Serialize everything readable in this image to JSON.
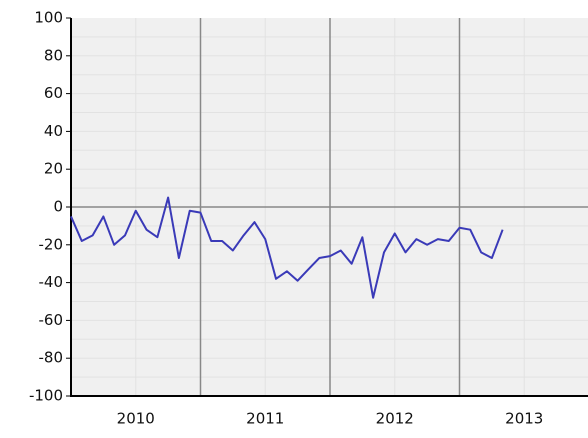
{
  "chart_data": {
    "type": "line",
    "x": [
      2010,
      2010.083,
      2010.167,
      2010.25,
      2010.333,
      2010.417,
      2010.5,
      2010.583,
      2010.667,
      2010.75,
      2010.833,
      2010.917,
      2011,
      2011.083,
      2011.167,
      2011.25,
      2011.333,
      2011.417,
      2011.5,
      2011.583,
      2011.667,
      2011.75,
      2011.833,
      2011.917,
      2012,
      2012.083,
      2012.167,
      2012.25,
      2012.333,
      2012.417,
      2012.5,
      2012.583,
      2012.667,
      2012.75,
      2012.833,
      2012.917,
      2013,
      2013.083,
      2013.167,
      2013.25,
      2013.333
    ],
    "series": [
      {
        "color": "#3a3ab8",
        "values": [
          -5,
          -18,
          -15,
          -5,
          -20,
          -15,
          -2,
          -12,
          -16,
          5,
          -27,
          -2,
          -3,
          -18,
          -18,
          -23,
          -15,
          -8,
          -17,
          -38,
          -34,
          -39,
          -33,
          -27,
          -26,
          -23,
          -30,
          -16,
          -48,
          -24,
          -14,
          -24,
          -17,
          -20,
          -17,
          -18,
          -11,
          -12,
          -24,
          -27,
          -12
        ]
      }
    ],
    "xlim": [
      2010,
      2014
    ],
    "xticks": [
      {
        "value": 2010.5,
        "label": "2010"
      },
      {
        "value": 2011.5,
        "label": "2011"
      },
      {
        "value": 2012.5,
        "label": "2012"
      },
      {
        "value": 2013.5,
        "label": "2013"
      }
    ],
    "major_gridlines": [
      2011,
      2012,
      2013
    ],
    "ylim": [
      -100,
      100
    ],
    "yticks": [
      -100,
      -80,
      -60,
      -40,
      -20,
      0,
      20,
      40,
      60,
      80,
      100
    ],
    "grid": true
  }
}
